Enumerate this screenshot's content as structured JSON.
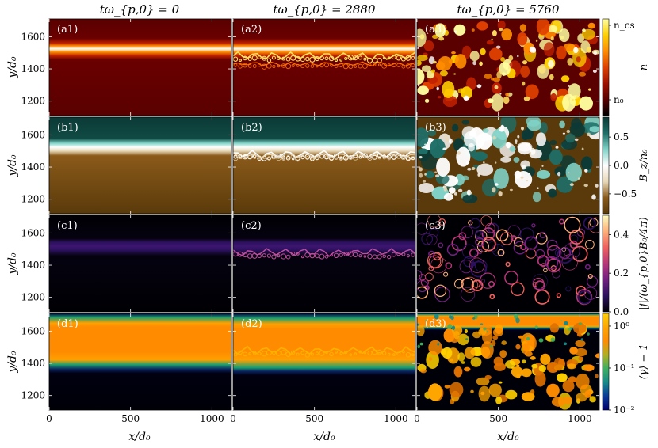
{
  "figure": {
    "columns": [
      {
        "title": "tω_{p,0} = 0",
        "panels": [
          "(a1)",
          "(b1)",
          "(c1)",
          "(d1)"
        ]
      },
      {
        "title": "tω_{p,0} = 2880",
        "panels": [
          "(a2)",
          "(b2)",
          "(c2)",
          "(d2)"
        ]
      },
      {
        "title": "tω_{p,0} = 5760",
        "panels": [
          "(a3)",
          "(b3)",
          "(c3)",
          "(d3)"
        ]
      }
    ],
    "ylabel": "y/d₀",
    "xlabel": "x/d₀"
  },
  "chart_data": {
    "type": "heatmap",
    "x_ticks": [
      0,
      500,
      1000
    ],
    "xlim": [
      0,
      1120
    ],
    "y_ticks": [
      1200,
      1400,
      1600
    ],
    "ylim": [
      1110,
      1710
    ],
    "rows": [
      {
        "quantity": "n",
        "colorbar_label": "n",
        "colorbar_ticks": [
          "n_cs",
          "n₀"
        ],
        "colormap": [
          "#000000",
          "#5a0000",
          "#a01000",
          "#e04000",
          "#ff8c00",
          "#ffd000",
          "#ffffa0"
        ],
        "log_scale": false
      },
      {
        "quantity": "B_z/n_0",
        "colorbar_label": "B_z/n₀",
        "colorbar_ticks": [
          "0.5",
          "0.0",
          "−0.5"
        ],
        "colorbar_values": [
          0.5,
          0.0,
          -0.5
        ],
        "clim": [
          -0.85,
          0.85
        ],
        "colormap": [
          "#5a3a0a",
          "#8a5a1a",
          "#e8d8b8",
          "#ffffff",
          "#7fd3c8",
          "#1f6e68",
          "#0c3a36"
        ],
        "log_scale": false
      },
      {
        "quantity": "|j|/(ω_{p,0}B_0/4π)",
        "colorbar_label": "|j|/(ω_{p,0}B₀/4π)",
        "colorbar_ticks": [
          "0.4",
          "0.2",
          "0.0"
        ],
        "colorbar_values": [
          0.4,
          0.2,
          0.0
        ],
        "clim": [
          0.0,
          0.5
        ],
        "colormap": [
          "#000004",
          "#2c115f",
          "#721f81",
          "#b73779",
          "#f1605d",
          "#feb078",
          "#fcfdbf"
        ],
        "log_scale": false
      },
      {
        "quantity": "⟨γ⟩ − 1",
        "colorbar_label": "⟨γ⟩ − 1",
        "colorbar_ticks": [
          "10⁰",
          "10⁻¹",
          "10⁻²"
        ],
        "colorbar_values": [
          1,
          0.1,
          0.01
        ],
        "clim": [
          0.01,
          2.0
        ],
        "colormap": [
          "#000070",
          "#0a3a9a",
          "#138a8a",
          "#3cb060",
          "#b0b020",
          "#ff8c00",
          "#ffa500",
          "#ffd000"
        ],
        "log_scale": true
      }
    ]
  }
}
